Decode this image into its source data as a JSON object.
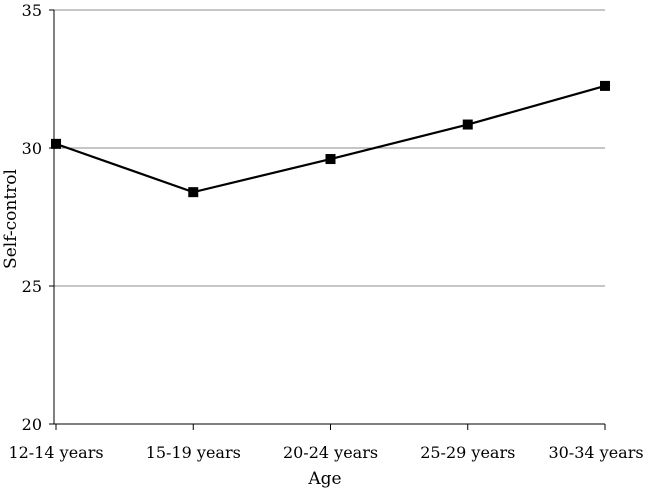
{
  "chart_data": {
    "type": "line",
    "categories": [
      "12-14 years",
      "15-19 years",
      "20-24 years",
      "25-29 years",
      "30-34 years"
    ],
    "series": [
      {
        "values": [
          30.15,
          28.4,
          29.6,
          30.85,
          32.25
        ],
        "color": "#000000",
        "marker": "square"
      }
    ],
    "xlabel": "Age",
    "ylabel": "Self-control",
    "ylim": [
      20,
      35
    ],
    "yticks": [
      20,
      25,
      30,
      35
    ],
    "grid": {
      "horizontal": true,
      "color": "#8c8c8c"
    },
    "legend": "none"
  }
}
